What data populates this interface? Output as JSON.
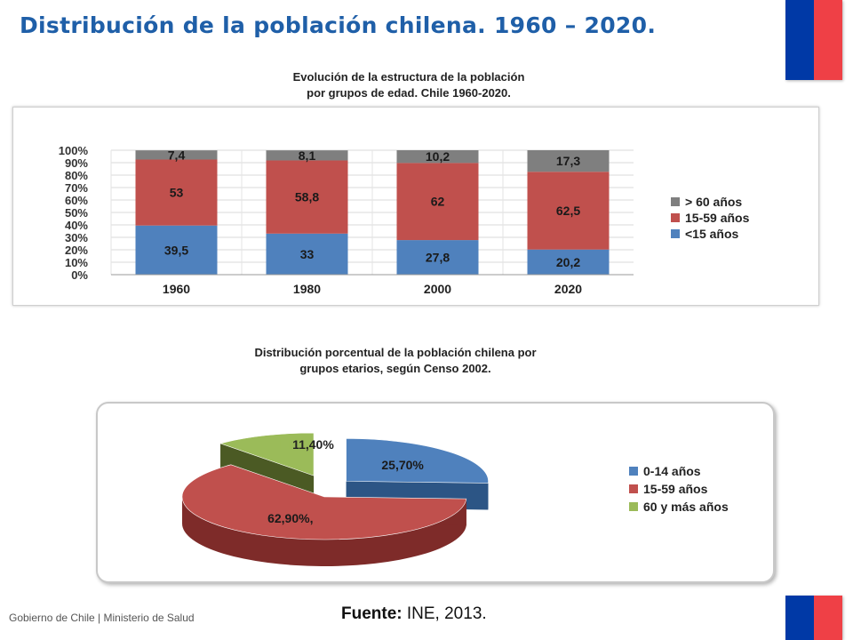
{
  "page": {
    "title": "Distribución de la población chilena. 1960 – 2020.",
    "footer_left": "Gobierno de Chile | Ministerio de Salud",
    "source_label": "Fuente:",
    "source_value": " INE, 2013."
  },
  "chart_data": [
    {
      "type": "bar",
      "stacked": true,
      "title_line1": "Evolución de la estructura de la población",
      "title_line2": "por grupos de edad. Chile 1960-2020.",
      "categories": [
        "1960",
        "1980",
        "2000",
        "2020"
      ],
      "series": [
        {
          "name": "<15 años",
          "values": [
            39.5,
            33,
            27.8,
            20.2
          ],
          "labels": [
            "39,5",
            "33",
            "27,8",
            "20,2"
          ],
          "color": "#4f81bd"
        },
        {
          "name": "15-59 años",
          "values": [
            53,
            58.8,
            62,
            62.5
          ],
          "labels": [
            "53",
            "58,8",
            "62",
            "62,5"
          ],
          "color": "#c0504d"
        },
        {
          "name": "> 60 años",
          "values": [
            7.4,
            8.1,
            10.2,
            17.3
          ],
          "labels": [
            "7,4",
            "8,1",
            "10,2",
            "17,3"
          ],
          "color": "#7f7f7f"
        }
      ],
      "yticks": [
        "0%",
        "10%",
        "20%",
        "30%",
        "40%",
        "50%",
        "60%",
        "70%",
        "80%",
        "90%",
        "100%"
      ],
      "ylim": [
        0,
        100
      ],
      "grid": true,
      "legend": "right",
      "legend_order": [
        "> 60 años",
        "15-59 años",
        "<15 años"
      ]
    },
    {
      "type": "pie",
      "three_d": true,
      "title_line1": "Distribución porcentual de la población chilena por",
      "title_line2": "grupos etarios, según Censo 2002.",
      "slices": [
        {
          "name": "0-14 años",
          "value": 25.7,
          "label": "25,70%",
          "color": "#4f81bd",
          "side_color": "#2c5585",
          "exploded": true
        },
        {
          "name": "15-59 años",
          "value": 62.9,
          "label": "62,90%,",
          "color": "#c0504d",
          "side_color": "#7e2b29",
          "exploded": false
        },
        {
          "name": "60 y más años",
          "value": 11.4,
          "label": "11,40%",
          "color": "#9bbb59",
          "side_color": "#4b5a24",
          "exploded": true
        }
      ],
      "legend": "right"
    }
  ]
}
